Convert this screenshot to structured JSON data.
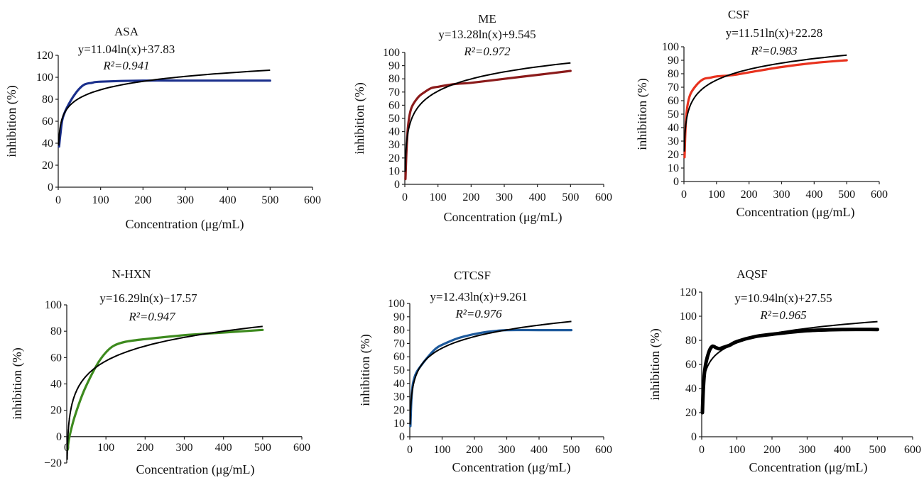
{
  "chart_data": [
    {
      "type": "line",
      "title": "ASA",
      "equation": "y=11.04ln(x)+37.83",
      "r2": "R²=0.941",
      "xlabel": "Concentration (μg/mL)",
      "ylabel": "inhibition (%)",
      "xlim": [
        0,
        600
      ],
      "ylim": [
        0,
        120
      ],
      "xticks": [
        0,
        100,
        200,
        300,
        400,
        500,
        600
      ],
      "yticks": [
        0,
        20,
        40,
        60,
        80,
        100,
        120
      ],
      "fit": {
        "a": 11.04,
        "b": 37.83
      },
      "series": [
        {
          "color": "#1a2f8c",
          "x": [
            2,
            5,
            10,
            20,
            40,
            60,
            80,
            100,
            200,
            300,
            400,
            500
          ],
          "y": [
            37,
            48,
            62,
            72,
            85,
            93,
            95,
            96,
            97,
            97,
            97,
            97
          ]
        }
      ]
    },
    {
      "type": "line",
      "title": "ME",
      "equation": "y=13.28ln(x)+9.545",
      "r2": "R²=0.972",
      "xlabel": "Concentration (μg/mL)",
      "ylabel": "inhibition (%)",
      "xlim": [
        0,
        600
      ],
      "ylim": [
        0,
        100
      ],
      "xticks": [
        0,
        100,
        200,
        300,
        400,
        500,
        600
      ],
      "yticks": [
        0,
        10,
        20,
        30,
        40,
        50,
        60,
        70,
        80,
        90,
        100
      ],
      "fit": {
        "a": 13.28,
        "b": 9.545
      },
      "series": [
        {
          "color": "#8b1a1a",
          "x": [
            2,
            5,
            10,
            20,
            40,
            60,
            80,
            100,
            150,
            200,
            300,
            400,
            500
          ],
          "y": [
            4,
            25,
            45,
            58,
            66,
            70,
            73,
            74,
            76,
            77,
            80,
            83,
            86
          ]
        }
      ]
    },
    {
      "type": "line",
      "title": "CSF",
      "equation": "y=11.51ln(x)+22.28",
      "r2": "R²=0.983",
      "xlabel": "Concentration (μg/mL)",
      "ylabel": "inhibition (%)",
      "xlim": [
        0,
        600
      ],
      "ylim": [
        0,
        100
      ],
      "xticks": [
        0,
        100,
        200,
        300,
        400,
        500,
        600
      ],
      "yticks": [
        0,
        10,
        20,
        30,
        40,
        50,
        60,
        70,
        80,
        90,
        100
      ],
      "fit": {
        "a": 11.51,
        "b": 22.28
      },
      "series": [
        {
          "color": "#e8321e",
          "x": [
            2,
            5,
            10,
            20,
            40,
            60,
            80,
            100,
            150,
            200,
            300,
            400,
            500
          ],
          "y": [
            18,
            40,
            55,
            65,
            72,
            76,
            77,
            78,
            79,
            81,
            85,
            88,
            90
          ]
        }
      ]
    },
    {
      "type": "line",
      "title": "N-HXN",
      "equation": "y=16.29ln(x)−17.57",
      "r2": "R²=0.947",
      "xlabel": "Concentration (μg/mL)",
      "ylabel": "inhibition (%)",
      "xlim": [
        0,
        600
      ],
      "ylim": [
        -20,
        100
      ],
      "xticks": [
        0,
        100,
        200,
        300,
        400,
        500,
        600
      ],
      "yticks": [
        -20,
        0,
        20,
        40,
        60,
        80,
        100
      ],
      "fit": {
        "a": 16.29,
        "b": -17.57
      },
      "series": [
        {
          "color": "#3d8a1e",
          "x": [
            2,
            5,
            10,
            20,
            40,
            60,
            80,
            100,
            120,
            150,
            200,
            300,
            400,
            500
          ],
          "y": [
            -10,
            -3,
            4,
            15,
            32,
            45,
            56,
            64,
            69,
            72,
            74,
            77,
            79,
            81
          ]
        }
      ]
    },
    {
      "type": "line",
      "title": "CTCSF",
      "equation": "y=12.43ln(x)+9.261",
      "r2": "R²=0.976",
      "xlabel": "Concentration (μg/mL)",
      "ylabel": "inhibition (%)",
      "xlim": [
        0,
        600
      ],
      "ylim": [
        0,
        100
      ],
      "xticks": [
        0,
        100,
        200,
        300,
        400,
        500,
        600
      ],
      "yticks": [
        0,
        10,
        20,
        30,
        40,
        50,
        60,
        70,
        80,
        90,
        100
      ],
      "fit": {
        "a": 12.43,
        "b": 9.261
      },
      "series": [
        {
          "color": "#1e5a9c",
          "x": [
            2,
            5,
            10,
            20,
            40,
            60,
            80,
            100,
            150,
            200,
            250,
            300,
            400,
            500
          ],
          "y": [
            8,
            28,
            40,
            48,
            55,
            61,
            66,
            69,
            74,
            77,
            79,
            80,
            80,
            80
          ]
        }
      ]
    },
    {
      "type": "line",
      "title": "AQSF",
      "equation": "y=10.94ln(x)+27.55",
      "r2": "R²=0.965",
      "xlabel": "Concentration (μg/mL)",
      "ylabel": "inhibition (%)",
      "xlim": [
        0,
        600
      ],
      "ylim": [
        0,
        120
      ],
      "xticks": [
        0,
        100,
        200,
        300,
        400,
        500,
        600
      ],
      "yticks": [
        0,
        20,
        40,
        60,
        80,
        100,
        120
      ],
      "fit": {
        "a": 10.94,
        "b": 27.55
      },
      "series": [
        {
          "color": "#000000",
          "x": [
            2,
            5,
            10,
            20,
            30,
            40,
            50,
            60,
            80,
            100,
            150,
            200,
            300,
            400,
            500
          ],
          "y": [
            20,
            42,
            58,
            70,
            75,
            74,
            73,
            74,
            76,
            79,
            83,
            85,
            88,
            89,
            89
          ]
        }
      ]
    }
  ]
}
